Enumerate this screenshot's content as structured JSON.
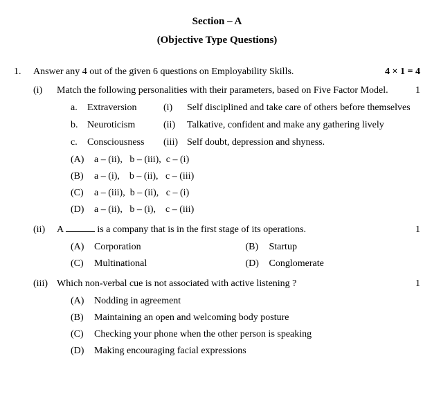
{
  "section_title": "Section – A",
  "section_subtitle": "(Objective Type Questions)",
  "q1": {
    "num": "1.",
    "text": "Answer any 4 out of the given 6 questions on Employability Skills.",
    "marks": "4 × 1 = 4"
  },
  "i": {
    "num": "(i)",
    "text": "Match the following personalities with their parameters, based on Five Factor Model.",
    "marks": "1",
    "rows": [
      {
        "a": "a.",
        "b": "Extraversion",
        "c": "(i)",
        "d": "Self disciplined and take care of others before themselves"
      },
      {
        "a": "b.",
        "b": "Neuroticism",
        "c": "(ii)",
        "d": "Talkative, confident and make any gathering lively"
      },
      {
        "a": "c.",
        "b": "Consciousness",
        "c": "(iii)",
        "d": "Self doubt, depression and shyness."
      }
    ],
    "opts": [
      {
        "l": "(A)",
        "t": "a – (ii),   b – (iii),  c – (i)"
      },
      {
        "l": "(B)",
        "t": "a – (i),    b – (ii),   c – (iii)"
      },
      {
        "l": "(C)",
        "t": "a – (iii),  b – (ii),   c – (i)"
      },
      {
        "l": "(D)",
        "t": "a – (ii),   b – (i),    c – (iii)"
      }
    ]
  },
  "ii": {
    "num": "(ii)",
    "pre": "A ",
    "post": " is a company that is in the first stage of its operations.",
    "marks": "1",
    "opts": [
      {
        "l1": "(A)",
        "t1": "Corporation",
        "l2": "(B)",
        "t2": "Startup"
      },
      {
        "l1": "(C)",
        "t1": "Multinational",
        "l2": "(D)",
        "t2": "Conglomerate"
      }
    ]
  },
  "iii": {
    "num": "(iii)",
    "text": "Which non-verbal cue is not associated with active listening ?",
    "marks": "1",
    "opts": [
      {
        "l": "(A)",
        "t": "Nodding in agreement"
      },
      {
        "l": "(B)",
        "t": "Maintaining an open and welcoming body posture"
      },
      {
        "l": "(C)",
        "t": "Checking your phone when the other person is speaking"
      },
      {
        "l": "(D)",
        "t": "Making encouraging facial expressions"
      }
    ]
  }
}
